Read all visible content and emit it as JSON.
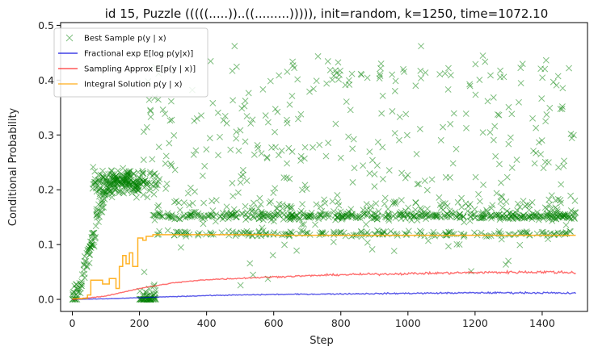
{
  "chart_data": {
    "type": "scatter",
    "title": "id 15, Puzzle (((((.....))..((.........))))), init=random, k=1250, time=1072.10",
    "xlabel": "Step",
    "ylabel": "Conditional Probability",
    "xlim": [
      -35,
      1535
    ],
    "ylim": [
      -0.022,
      0.505
    ],
    "xticks": [
      0,
      200,
      400,
      600,
      800,
      1000,
      1200,
      1400
    ],
    "yticks": [
      0.0,
      0.1,
      0.2,
      0.3,
      0.4,
      0.5
    ],
    "xtick_labels": [
      "0",
      "200",
      "400",
      "600",
      "800",
      "1000",
      "1200",
      "1400"
    ],
    "ytick_labels": [
      "0.0",
      "0.1",
      "0.2",
      "0.3",
      "0.4",
      "0.5"
    ],
    "grid": false,
    "legend_position": "upper left",
    "series": [
      {
        "name": "Best Sample p(y | x)",
        "kind": "scatter",
        "marker": "x",
        "color": "#008000",
        "bands": [
          {
            "x_range": [
              240,
              1500
            ],
            "y": 0.152,
            "spread": 0.006
          },
          {
            "x_range": [
              250,
              1500
            ],
            "y": 0.12,
            "spread": 0.004
          },
          {
            "x_range": [
              250,
              1500
            ],
            "y": 0.17,
            "spread": 0.022
          },
          {
            "x_range": [
              60,
              260
            ],
            "y": 0.215,
            "spread": 0.02
          },
          {
            "x_range": [
              200,
              1500
            ],
            "y": 0.27,
            "spread": 0.16
          },
          {
            "x_range": [
              600,
              1500
            ],
            "y": 0.41,
            "spread": 0.03
          }
        ],
        "ramp": [
          {
            "x": 0,
            "y": 0.0
          },
          {
            "x": 20,
            "y": 0.02
          },
          {
            "x": 40,
            "y": 0.06
          },
          {
            "x": 60,
            "y": 0.11
          },
          {
            "x": 80,
            "y": 0.16
          },
          {
            "x": 100,
            "y": 0.2
          },
          {
            "x": 150,
            "y": 0.22
          },
          {
            "x": 200,
            "y": 0.21
          }
        ]
      },
      {
        "name": "Fractional exp E[log p(y|x)]",
        "kind": "line",
        "color": "#0000dd",
        "points": [
          {
            "x": 0,
            "y": 0.0
          },
          {
            "x": 100,
            "y": 0.001
          },
          {
            "x": 200,
            "y": 0.003
          },
          {
            "x": 300,
            "y": 0.005
          },
          {
            "x": 400,
            "y": 0.007
          },
          {
            "x": 600,
            "y": 0.009
          },
          {
            "x": 800,
            "y": 0.01
          },
          {
            "x": 1000,
            "y": 0.011
          },
          {
            "x": 1200,
            "y": 0.012
          },
          {
            "x": 1400,
            "y": 0.012
          },
          {
            "x": 1500,
            "y": 0.011
          }
        ]
      },
      {
        "name": "Sampling Approx E[p(y | x)]",
        "kind": "line",
        "color": "#ff2020",
        "points": [
          {
            "x": 0,
            "y": 0.0
          },
          {
            "x": 100,
            "y": 0.006
          },
          {
            "x": 200,
            "y": 0.02
          },
          {
            "x": 300,
            "y": 0.03
          },
          {
            "x": 400,
            "y": 0.036
          },
          {
            "x": 600,
            "y": 0.041
          },
          {
            "x": 800,
            "y": 0.045
          },
          {
            "x": 1000,
            "y": 0.047
          },
          {
            "x": 1200,
            "y": 0.049
          },
          {
            "x": 1400,
            "y": 0.05
          },
          {
            "x": 1500,
            "y": 0.049
          }
        ]
      },
      {
        "name": "Integral Solution p(y | x)",
        "kind": "step",
        "color": "#ffa500",
        "points": [
          {
            "x": 0,
            "y": 0.001
          },
          {
            "x": 30,
            "y": 0.002
          },
          {
            "x": 45,
            "y": 0.008
          },
          {
            "x": 55,
            "y": 0.035
          },
          {
            "x": 90,
            "y": 0.028
          },
          {
            "x": 110,
            "y": 0.038
          },
          {
            "x": 130,
            "y": 0.02
          },
          {
            "x": 140,
            "y": 0.06
          },
          {
            "x": 150,
            "y": 0.08
          },
          {
            "x": 160,
            "y": 0.065
          },
          {
            "x": 170,
            "y": 0.085
          },
          {
            "x": 180,
            "y": 0.06
          },
          {
            "x": 195,
            "y": 0.112
          },
          {
            "x": 210,
            "y": 0.108
          },
          {
            "x": 220,
            "y": 0.115
          },
          {
            "x": 240,
            "y": 0.118
          },
          {
            "x": 400,
            "y": 0.118
          },
          {
            "x": 600,
            "y": 0.117
          },
          {
            "x": 800,
            "y": 0.117
          },
          {
            "x": 1000,
            "y": 0.117
          },
          {
            "x": 1200,
            "y": 0.117
          },
          {
            "x": 1500,
            "y": 0.117
          }
        ]
      }
    ]
  }
}
